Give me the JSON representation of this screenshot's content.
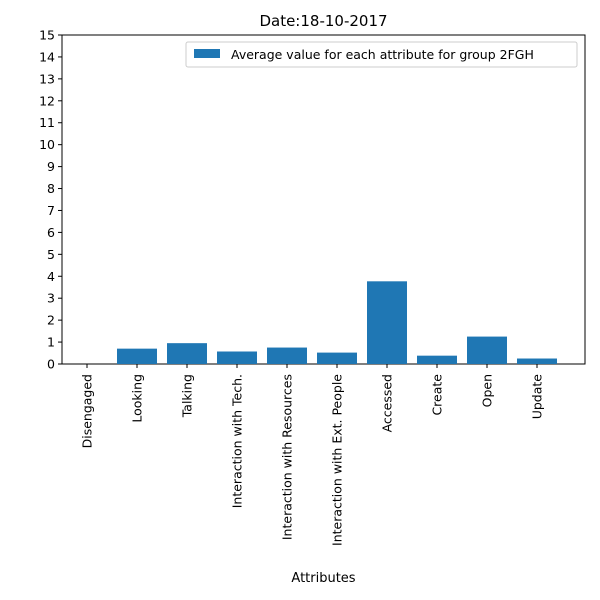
{
  "chart_data": {
    "type": "bar",
    "title": "Date:18-10-2017",
    "xlabel": "Attributes",
    "ylabel": "",
    "ylim": [
      0,
      15
    ],
    "yticks": [
      0,
      1,
      2,
      3,
      4,
      5,
      6,
      7,
      8,
      9,
      10,
      11,
      12,
      13,
      14,
      15
    ],
    "categories": [
      "Disengaged",
      "Looking",
      "Talking",
      "Interaction with Tech.",
      "Interaction with Resources",
      "Interaction with Ext. People",
      "Accessed",
      "Create",
      "Open",
      "Update"
    ],
    "series": [
      {
        "name": "Average value for each attribute for group 2FGH",
        "values": [
          0,
          0.7,
          0.95,
          0.57,
          0.75,
          0.52,
          3.77,
          0.38,
          1.25,
          0.25
        ],
        "color": "#1f77b4"
      }
    ],
    "grid": false,
    "legend": "top-right"
  }
}
